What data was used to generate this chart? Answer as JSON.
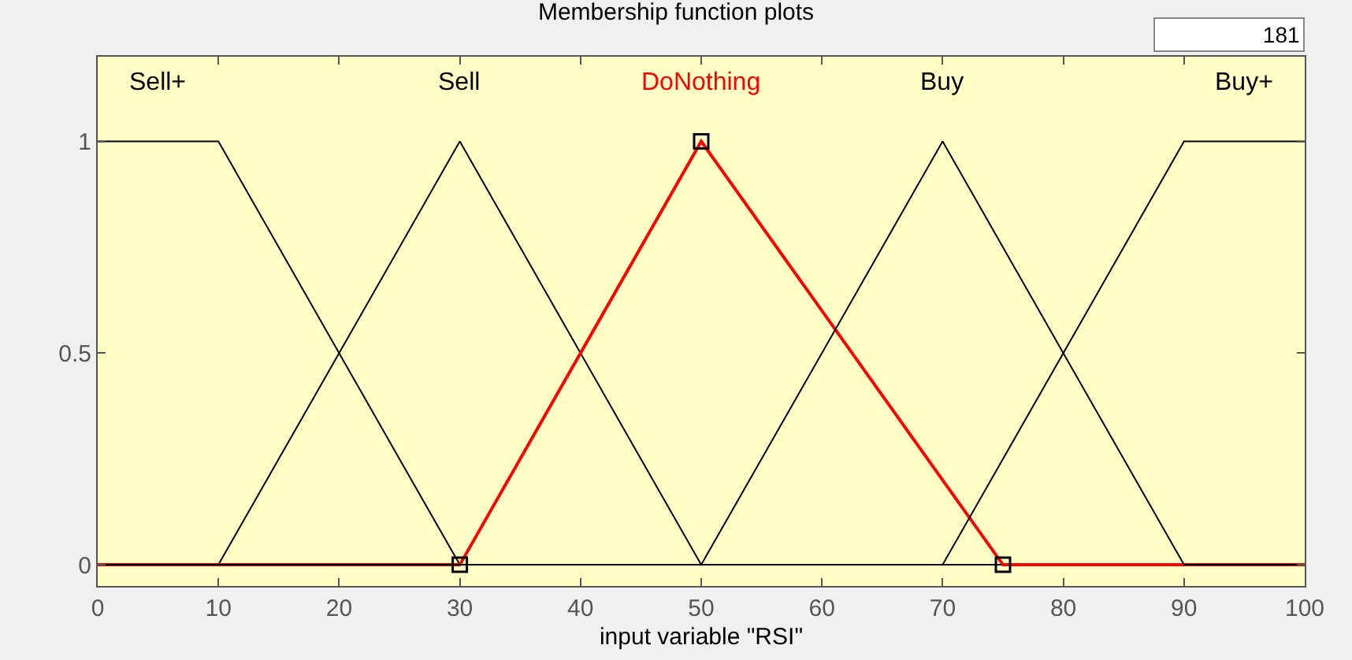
{
  "chart_data": {
    "type": "line",
    "title": "Membership function plots",
    "xlabel": "input variable \"RSI\"",
    "annotations": [
      "181"
    ],
    "xlim": [
      0,
      100
    ],
    "xticks": [
      0,
      10,
      20,
      30,
      40,
      50,
      60,
      70,
      80,
      90,
      100
    ],
    "ylim": [
      -0.05,
      1.2
    ],
    "yticks": [
      0,
      0.5,
      1
    ],
    "grid": false,
    "legend": false,
    "series": [
      {
        "name": "Sell+",
        "color": "#000000",
        "x": [
          0,
          10,
          30,
          100
        ],
        "values": [
          1,
          1,
          0,
          0
        ]
      },
      {
        "name": "Sell",
        "color": "#000000",
        "x": [
          0,
          10,
          30,
          50,
          100
        ],
        "values": [
          0,
          0,
          1,
          0,
          0
        ]
      },
      {
        "name": "DoNothing",
        "color": "#ff0000",
        "x": [
          0,
          30,
          50,
          75,
          100
        ],
        "values": [
          0,
          0,
          1,
          0,
          0
        ]
      },
      {
        "name": "Buy",
        "color": "#000000",
        "x": [
          0,
          50,
          70,
          90,
          100
        ],
        "values": [
          0,
          0,
          1,
          0,
          0
        ]
      },
      {
        "name": "Buy+",
        "color": "#000000",
        "x": [
          0,
          70,
          90,
          100
        ],
        "values": [
          0,
          0,
          1,
          1
        ]
      },
      {
        "type": "scatter",
        "marker": "square",
        "color": "#000000",
        "x": [
          30,
          50,
          75
        ],
        "values": [
          0,
          1,
          0
        ]
      }
    ]
  }
}
